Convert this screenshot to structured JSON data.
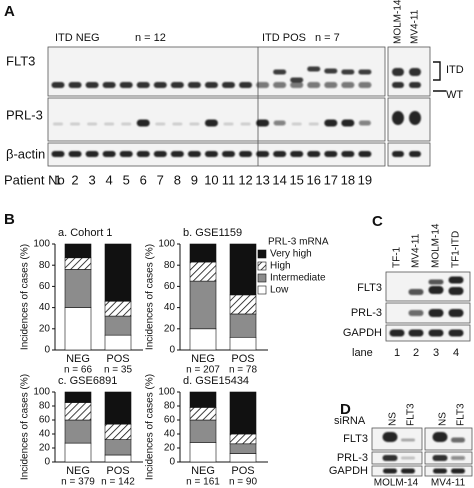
{
  "panel_a": {
    "label": "A",
    "groups": [
      {
        "name": "ITD NEG",
        "n": "n = 12"
      },
      {
        "name": "ITD POS",
        "n": "n = 7"
      }
    ],
    "cell_lines": [
      "MOLM-14",
      "MV4-11"
    ],
    "rows": [
      "FLT3",
      "PRL-3",
      "β-actin"
    ],
    "bands": [
      "ITD",
      "WT"
    ],
    "lane_title": "Patient No",
    "lanes": [
      1,
      2,
      3,
      4,
      5,
      6,
      7,
      8,
      9,
      10,
      11,
      12,
      13,
      14,
      15,
      16,
      17,
      18,
      19
    ]
  },
  "panel_b": {
    "label": "B"
  },
  "stack_legend": {
    "title": "PRL-3 mRNA",
    "entries": [
      {
        "name": "Very high",
        "color": "#111111"
      },
      {
        "name": "High",
        "pattern": "hatch"
      },
      {
        "name": "Intermediate",
        "color": "#8c8c8c"
      },
      {
        "name": "Low",
        "color": "#ffffff"
      }
    ]
  },
  "chart_data": [
    {
      "type": "bar",
      "stacked": true,
      "title": "a. Cohort 1",
      "ylabel": "Incidences of cases (%)",
      "categories": [
        "NEG",
        "POS"
      ],
      "category_notes": [
        "n = 66",
        "n = 35"
      ],
      "ylim": [
        0,
        100
      ],
      "yticks": [
        0,
        20,
        40,
        60,
        80,
        100
      ],
      "series": [
        {
          "values": [
            13,
            54
          ]
        },
        {
          "values": [
            11,
            14
          ]
        },
        {
          "values": [
            36,
            18
          ]
        },
        {
          "values": [
            40,
            14
          ]
        }
      ]
    },
    {
      "type": "bar",
      "stacked": true,
      "title": "b. GSE1159",
      "ylabel": "Incidences of cases (%)",
      "categories": [
        "NEG",
        "POS"
      ],
      "category_notes": [
        "n = 207",
        "n = 78"
      ],
      "ylim": [
        0,
        100
      ],
      "yticks": [
        0,
        20,
        40,
        60,
        80,
        100
      ],
      "series": [
        {
          "values": [
            17,
            48
          ]
        },
        {
          "values": [
            18,
            18
          ]
        },
        {
          "values": [
            45,
            22
          ]
        },
        {
          "values": [
            20,
            12
          ]
        }
      ]
    },
    {
      "type": "bar",
      "stacked": true,
      "title": "c. GSE6891",
      "ylabel": "Incidences of cases (%)",
      "categories": [
        "NEG",
        "POS"
      ],
      "category_notes": [
        "n = 379",
        "n = 142"
      ],
      "ylim": [
        0,
        100
      ],
      "yticks": [
        0,
        20,
        40,
        60,
        80,
        100
      ],
      "series": [
        {
          "values": [
            15,
            46
          ]
        },
        {
          "values": [
            25,
            22
          ]
        },
        {
          "values": [
            33,
            22
          ]
        },
        {
          "values": [
            27,
            10
          ]
        }
      ]
    },
    {
      "type": "bar",
      "stacked": true,
      "title": "d. GSE15434",
      "ylabel": "Incidences of cases (%)",
      "categories": [
        "NEG",
        "POS"
      ],
      "category_notes": [
        "n = 161",
        "n = 90"
      ],
      "ylim": [
        0,
        100
      ],
      "yticks": [
        0,
        20,
        40,
        60,
        80,
        100
      ],
      "series": [
        {
          "values": [
            22,
            60
          ]
        },
        {
          "values": [
            18,
            14
          ]
        },
        {
          "values": [
            32,
            14
          ]
        },
        {
          "values": [
            28,
            12
          ]
        }
      ]
    }
  ],
  "panel_c": {
    "label": "C",
    "cell_lines": [
      "TF-1",
      "MV4-11",
      "MOLM-14",
      "TF1-ITD"
    ],
    "rows": [
      "FLT3",
      "PRL-3",
      "GAPDH"
    ],
    "lane_title": "lane",
    "lanes": [
      1,
      2,
      3,
      4
    ]
  },
  "panel_d": {
    "label": "D",
    "sirna_title": "siRNA",
    "sirna": [
      "NS",
      "FLT3",
      "NS",
      "FLT3"
    ],
    "rows": [
      "FLT3",
      "PRL-3",
      "GAPDH"
    ],
    "cell_lines": [
      "MOLM-14",
      "MV4-11"
    ]
  }
}
